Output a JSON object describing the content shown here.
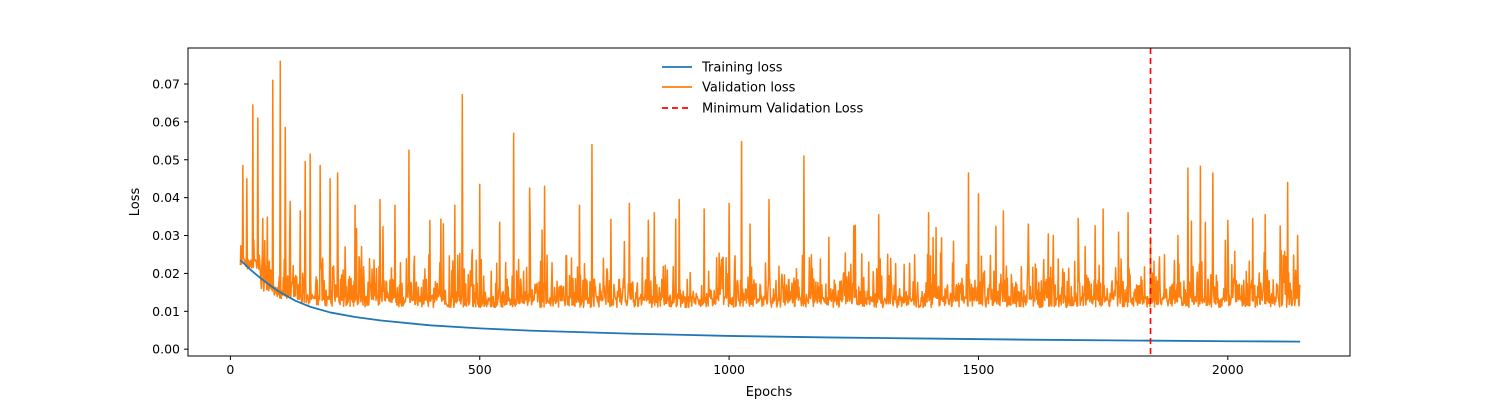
{
  "chart_data": {
    "type": "line",
    "title": "",
    "xlabel": "Epochs",
    "ylabel": "Loss",
    "xlim": [
      -85,
      2245
    ],
    "ylim": [
      -0.0018,
      0.0795
    ],
    "xticks": [
      0,
      500,
      1000,
      1500,
      2000
    ],
    "xtick_labels": [
      "0",
      "500",
      "1000",
      "1500",
      "2000"
    ],
    "yticks": [
      0.0,
      0.01,
      0.02,
      0.03,
      0.04,
      0.05,
      0.06,
      0.07
    ],
    "ytick_labels": [
      "0.00",
      "0.01",
      "0.02",
      "0.03",
      "0.04",
      "0.05",
      "0.06",
      "0.07"
    ],
    "grid": false,
    "legend_position": "top-center",
    "series": [
      {
        "name": "Training loss",
        "color": "#1f77b4",
        "x": [
          20,
          40,
          60,
          80,
          100,
          130,
          160,
          200,
          250,
          300,
          400,
          500,
          600,
          700,
          800,
          900,
          1000,
          1200,
          1400,
          1600,
          1800,
          2000,
          2145
        ],
        "y": [
          0.0235,
          0.021,
          0.0188,
          0.0168,
          0.015,
          0.0128,
          0.0112,
          0.0097,
          0.0085,
          0.0076,
          0.0063,
          0.0055,
          0.0049,
          0.0045,
          0.0041,
          0.0038,
          0.0035,
          0.0031,
          0.0028,
          0.0025,
          0.0023,
          0.0021,
          0.002
        ]
      },
      {
        "name": "Validation loss",
        "color": "#ff7f0e",
        "x_start": 20,
        "x_end": 2145,
        "peaks": [
          [
            25,
            0.0485
          ],
          [
            33,
            0.045
          ],
          [
            45,
            0.0645
          ],
          [
            55,
            0.061
          ],
          [
            65,
            0.0345
          ],
          [
            85,
            0.071
          ],
          [
            100,
            0.076
          ],
          [
            110,
            0.0585
          ],
          [
            120,
            0.039
          ],
          [
            140,
            0.0365
          ],
          [
            150,
            0.0495
          ],
          [
            160,
            0.0515
          ],
          [
            180,
            0.0485
          ],
          [
            200,
            0.045
          ],
          [
            215,
            0.0465
          ],
          [
            250,
            0.038
          ],
          [
            300,
            0.0395
          ],
          [
            330,
            0.038
          ],
          [
            358,
            0.0525
          ],
          [
            400,
            0.034
          ],
          [
            450,
            0.038
          ],
          [
            465,
            0.0672
          ],
          [
            500,
            0.0435
          ],
          [
            540,
            0.0335
          ],
          [
            568,
            0.057
          ],
          [
            600,
            0.0425
          ],
          [
            630,
            0.043
          ],
          [
            700,
            0.038
          ],
          [
            725,
            0.054
          ],
          [
            800,
            0.0385
          ],
          [
            850,
            0.036
          ],
          [
            900,
            0.0395
          ],
          [
            950,
            0.037
          ],
          [
            1000,
            0.0385
          ],
          [
            1025,
            0.0548
          ],
          [
            1080,
            0.0395
          ],
          [
            1150,
            0.051
          ],
          [
            1200,
            0.0295
          ],
          [
            1250,
            0.0325
          ],
          [
            1300,
            0.0355
          ],
          [
            1400,
            0.036
          ],
          [
            1450,
            0.0285
          ],
          [
            1480,
            0.0465
          ],
          [
            1500,
            0.041
          ],
          [
            1550,
            0.0365
          ],
          [
            1600,
            0.033
          ],
          [
            1650,
            0.03
          ],
          [
            1700,
            0.0345
          ],
          [
            1750,
            0.037
          ],
          [
            1800,
            0.036
          ],
          [
            1845,
            0.0295
          ],
          [
            1900,
            0.03
          ],
          [
            1920,
            0.0478
          ],
          [
            1945,
            0.0483
          ],
          [
            1970,
            0.0465
          ],
          [
            2000,
            0.034
          ],
          [
            2050,
            0.0345
          ],
          [
            2075,
            0.0355
          ],
          [
            2105,
            0.0325
          ],
          [
            2120,
            0.044
          ],
          [
            2140,
            0.03
          ]
        ]
      },
      {
        "name": "Minimum Validation Loss",
        "color": "#ff0000",
        "style": "dashed",
        "type": "vline",
        "x": 1845
      }
    ]
  }
}
